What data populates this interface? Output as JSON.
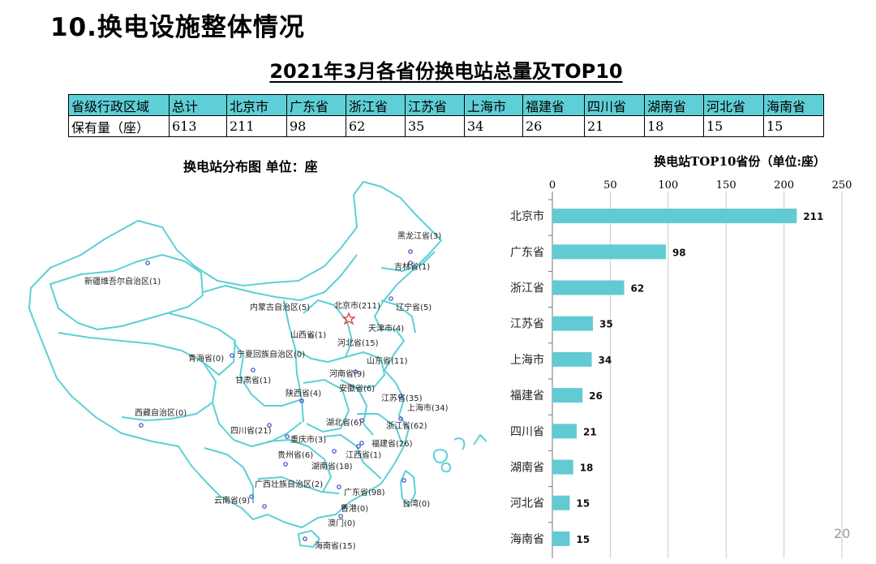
{
  "slide": {
    "title": "10.换电设施整体情况",
    "subtitle": "2021年3月各省份换电站总量及TOP10",
    "page_number": "20"
  },
  "table": {
    "rows": [
      [
        "省级行政区域",
        "总计",
        "北京市",
        "广东省",
        "浙江省",
        "江苏省",
        "上海市",
        "福建省",
        "四川省",
        "湖南省",
        "河北省",
        "海南省"
      ],
      [
        "保有量（座）",
        "613",
        "211",
        "98",
        "62",
        "35",
        "34",
        "26",
        "21",
        "18",
        "15",
        "15"
      ]
    ],
    "header_color": "#5fcfd7"
  },
  "map": {
    "title": "换电站分布图  单位：座",
    "border_color": "#5cd0d6",
    "labels": [
      "新疆维吾尔自治区(1)",
      "西藏自治区(0)",
      "青海省(0)",
      "甘肃省(1)",
      "宁夏回族自治区(0)",
      "内蒙古自治区(5)",
      "黑龙江省(3)",
      "吉林省(1)",
      "辽宁省(5)",
      "北京市(211)",
      "天津市(4)",
      "河北省(15)",
      "山西省(1)",
      "山东省(11)",
      "河南省(9)",
      "陕西省(4)",
      "安徽省(6)",
      "江苏省(35)",
      "上海市(34)",
      "浙江省(62)",
      "湖北省(6)",
      "四川省(21)",
      "重庆市(3)",
      "贵州省(6)",
      "湖南省(18)",
      "江西省(1)",
      "福建省(26)",
      "云南省(9)",
      "广西壮族自治区(2)",
      "广东省(98)",
      "香港(0)",
      "澳门(0)",
      "台湾(0)",
      "海南省(15)"
    ]
  },
  "chart_data": {
    "type": "bar",
    "orientation": "horizontal",
    "title": "换电站TOP10省份（单位:座）",
    "categories": [
      "北京市",
      "广东省",
      "浙江省",
      "江苏省",
      "上海市",
      "福建省",
      "四川省",
      "湖南省",
      "河北省",
      "海南省"
    ],
    "values": [
      211,
      98,
      62,
      35,
      34,
      26,
      21,
      18,
      15,
      15
    ],
    "xlim": [
      0,
      250
    ],
    "xticks": [
      0,
      50,
      100,
      150,
      200,
      250
    ],
    "grid": true,
    "bar_color": "#62cad3",
    "data_labels": true
  }
}
